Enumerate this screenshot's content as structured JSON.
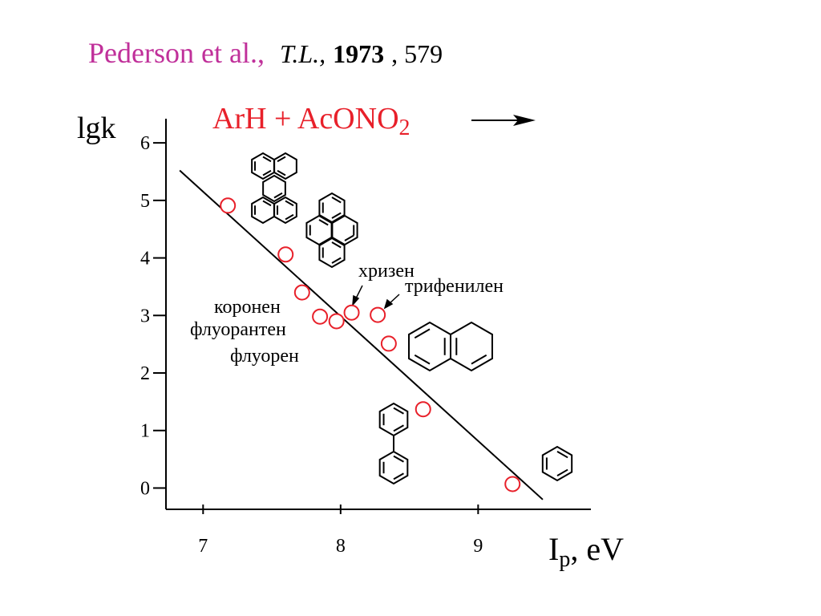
{
  "chart_data": {
    "type": "scatter",
    "title": {
      "authors": "Pederson et al.,",
      "journal": "T.L.,",
      "year": "1973",
      "pages": ", 579"
    },
    "reaction": {
      "text": "ArH + AcONO",
      "subscript": "2"
    },
    "y_label": "lgk",
    "x_label": {
      "text": "I",
      "subscript": "p",
      "unit": ", eV"
    },
    "annotations": [
      "хризен",
      "трифенилен",
      "коронен",
      "флуорантен",
      "флуорен"
    ],
    "x": [
      7.18,
      7.6,
      7.72,
      7.85,
      7.97,
      8.08,
      8.27,
      8.35,
      8.6,
      9.25
    ],
    "y": [
      4.91,
      4.06,
      3.4,
      2.98,
      2.9,
      3.05,
      3.01,
      2.51,
      1.37,
      0.07
    ],
    "color": "#e8202a",
    "fit_line": {
      "x": [
        6.83,
        9.47
      ],
      "y": [
        5.52,
        -0.2
      ]
    },
    "xlim": [
      6.73,
      9.82
    ],
    "ylim": [
      -0.37,
      6.42
    ],
    "xticks": [
      7,
      8,
      9
    ],
    "yticks": [
      0,
      1,
      2,
      3,
      4,
      5,
      6
    ]
  }
}
